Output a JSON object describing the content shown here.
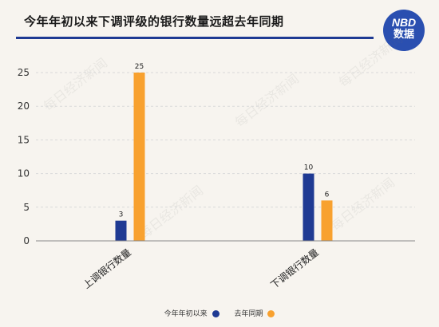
{
  "title": "今年年初以来下调评级的银行数量远超去年同期",
  "logo": {
    "line1": "NBD",
    "line2": "数据"
  },
  "watermark": "每日经济新闻",
  "colors": {
    "series1": "#1f3a93",
    "series2": "#f8a12f",
    "title_rule": "#1f3a93"
  },
  "chart_data": {
    "type": "bar",
    "title": "今年年初以来下调评级的银行数量远超去年同期",
    "categories": [
      "上调银行数量",
      "下调银行数量"
    ],
    "series": [
      {
        "name": "今年年初以来",
        "values": [
          3,
          10
        ]
      },
      {
        "name": "去年同期",
        "values": [
          25,
          6
        ]
      }
    ],
    "ylim": [
      0,
      25
    ],
    "yticks": [
      0,
      5,
      10,
      15,
      20,
      25
    ],
    "grid": true,
    "legend": "bottom-center"
  }
}
